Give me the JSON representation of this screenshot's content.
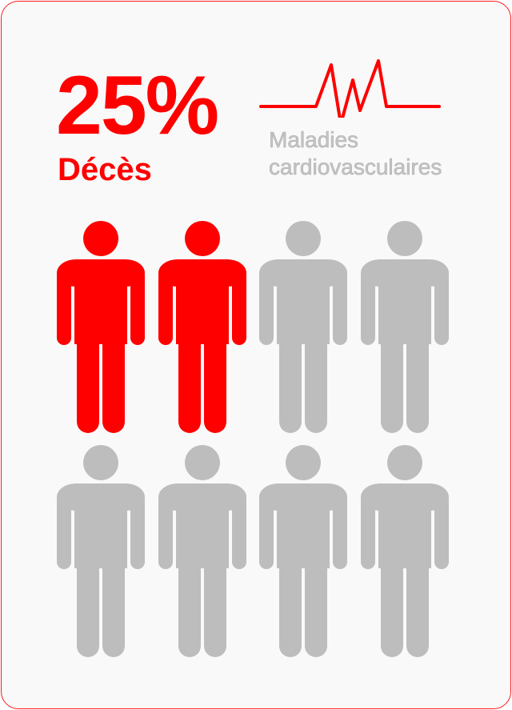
{
  "headline": {
    "percent": "25%",
    "label": "Décès"
  },
  "category": {
    "line1": "Maladies",
    "line2": "cardiovasculaires"
  },
  "icons": {
    "name": "person-icon",
    "total": 8,
    "highlighted": 2,
    "share_percent": 25
  },
  "colors": {
    "highlight": "#ff0000",
    "neutral": "#bdbdbd",
    "text_outline": "#b5b5b5",
    "border": "#ff1a1a"
  }
}
